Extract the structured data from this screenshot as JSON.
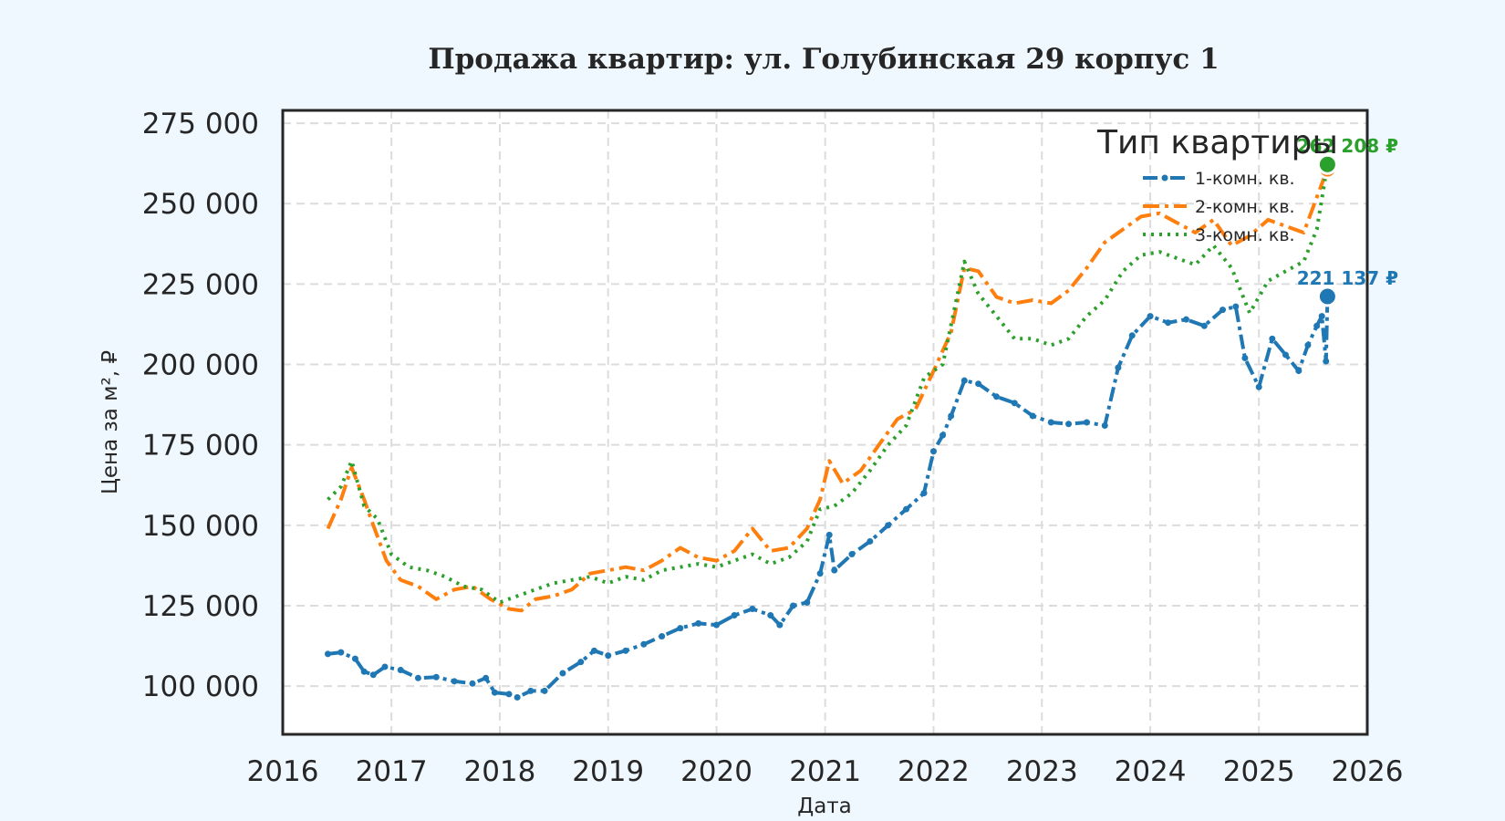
{
  "chart_data": {
    "type": "line",
    "title": "Продажа квартир: ул. Голубинская 29 корпус 1",
    "xlabel": "Дата",
    "ylabel": "Цена за м², ₽",
    "xlim": [
      "2016-01-01",
      "2026-01-01"
    ],
    "ylim": [
      85000,
      279000
    ],
    "x_ticks": [
      {
        "date": "2016-01-01",
        "label": "2016"
      },
      {
        "date": "2017-01-01",
        "label": "2017"
      },
      {
        "date": "2018-01-01",
        "label": "2018"
      },
      {
        "date": "2019-01-01",
        "label": "2019"
      },
      {
        "date": "2020-01-01",
        "label": "2020"
      },
      {
        "date": "2021-01-01",
        "label": "2021"
      },
      {
        "date": "2022-01-01",
        "label": "2022"
      },
      {
        "date": "2023-01-01",
        "label": "2023"
      },
      {
        "date": "2024-01-01",
        "label": "2024"
      },
      {
        "date": "2025-01-01",
        "label": "2025"
      },
      {
        "date": "2026-01-01",
        "label": "2026"
      }
    ],
    "y_ticks": [
      {
        "value": 100000,
        "label": "100 000"
      },
      {
        "value": 125000,
        "label": "125 000"
      },
      {
        "value": 150000,
        "label": "150 000"
      },
      {
        "value": 175000,
        "label": "175 000"
      },
      {
        "value": 200000,
        "label": "200 000"
      },
      {
        "value": 225000,
        "label": "225 000"
      },
      {
        "value": 250000,
        "label": "250 000"
      },
      {
        "value": 275000,
        "label": "275 000"
      }
    ],
    "grid": true,
    "legend": {
      "title": "Тип квартиры",
      "placement": "top-right"
    },
    "series": [
      {
        "name": "1-комн. кв.",
        "color": "#1f77b4",
        "line_style": "dash-dot-markers",
        "points": [
          [
            "2016-06-01",
            110000
          ],
          [
            "2016-07-15",
            110500
          ],
          [
            "2016-09-01",
            108500
          ],
          [
            "2016-10-01",
            104500
          ],
          [
            "2016-11-01",
            103500
          ],
          [
            "2016-12-10",
            106000
          ],
          [
            "2017-02-01",
            105000
          ],
          [
            "2017-04-01",
            102500
          ],
          [
            "2017-06-01",
            102800
          ],
          [
            "2017-08-01",
            101500
          ],
          [
            "2017-10-01",
            100800
          ],
          [
            "2017-11-15",
            102500
          ],
          [
            "2017-12-15",
            98000
          ],
          [
            "2018-02-01",
            97500
          ],
          [
            "2018-03-01",
            96500
          ],
          [
            "2018-04-15",
            98500
          ],
          [
            "2018-06-01",
            98500
          ],
          [
            "2018-08-01",
            104000
          ],
          [
            "2018-10-01",
            107500
          ],
          [
            "2018-11-15",
            111000
          ],
          [
            "2019-01-01",
            109500
          ],
          [
            "2019-03-01",
            111000
          ],
          [
            "2019-05-01",
            113000
          ],
          [
            "2019-07-01",
            115500
          ],
          [
            "2019-09-01",
            118000
          ],
          [
            "2019-11-01",
            119500
          ],
          [
            "2020-01-01",
            119000
          ],
          [
            "2020-03-01",
            122000
          ],
          [
            "2020-05-01",
            124000
          ],
          [
            "2020-07-01",
            122000
          ],
          [
            "2020-08-01",
            119000
          ],
          [
            "2020-09-15",
            125000
          ],
          [
            "2020-11-01",
            126000
          ],
          [
            "2020-12-15",
            135000
          ],
          [
            "2021-01-15",
            147000
          ],
          [
            "2021-02-01",
            136000
          ],
          [
            "2021-04-01",
            141000
          ],
          [
            "2021-06-01",
            145000
          ],
          [
            "2021-08-01",
            150000
          ],
          [
            "2021-10-01",
            155000
          ],
          [
            "2021-11-30",
            160000
          ],
          [
            "2022-01-01",
            173000
          ],
          [
            "2022-02-01",
            178000
          ],
          [
            "2022-03-01",
            184000
          ],
          [
            "2022-04-15",
            195000
          ],
          [
            "2022-06-01",
            194000
          ],
          [
            "2022-08-01",
            190000
          ],
          [
            "2022-10-01",
            188000
          ],
          [
            "2022-12-01",
            184000
          ],
          [
            "2023-02-01",
            182000
          ],
          [
            "2023-04-01",
            181500
          ],
          [
            "2023-06-01",
            182000
          ],
          [
            "2023-08-01",
            181000
          ],
          [
            "2023-09-15",
            199000
          ],
          [
            "2023-11-01",
            209000
          ],
          [
            "2024-01-01",
            215000
          ],
          [
            "2024-03-01",
            213000
          ],
          [
            "2024-05-01",
            214000
          ],
          [
            "2024-07-01",
            212000
          ],
          [
            "2024-09-01",
            217000
          ],
          [
            "2024-10-15",
            218000
          ],
          [
            "2024-11-15",
            202000
          ],
          [
            "2025-01-01",
            193000
          ],
          [
            "2025-02-15",
            208000
          ],
          [
            "2025-04-01",
            203000
          ],
          [
            "2025-05-15",
            198000
          ],
          [
            "2025-06-15",
            206000
          ],
          [
            "2025-07-15",
            212000
          ],
          [
            "2025-08-01",
            215000
          ],
          [
            "2025-08-15",
            201000
          ],
          [
            "2025-08-20",
            221137
          ]
        ],
        "last_value": 221137,
        "last_label": "221 137 ₽"
      },
      {
        "name": "2-комн. кв.",
        "color": "#ff7f0e",
        "line_style": "dash-dot",
        "points": [
          [
            "2016-06-01",
            149000
          ],
          [
            "2016-07-15",
            158000
          ],
          [
            "2016-08-20",
            168000
          ],
          [
            "2016-10-01",
            158000
          ],
          [
            "2016-11-01",
            150000
          ],
          [
            "2016-12-15",
            139000
          ],
          [
            "2017-02-01",
            133000
          ],
          [
            "2017-04-01",
            131000
          ],
          [
            "2017-06-01",
            127000
          ],
          [
            "2017-08-01",
            130000
          ],
          [
            "2017-10-01",
            131000
          ],
          [
            "2017-12-01",
            127000
          ],
          [
            "2018-02-01",
            124000
          ],
          [
            "2018-03-15",
            123500
          ],
          [
            "2018-05-01",
            127000
          ],
          [
            "2018-07-01",
            128000
          ],
          [
            "2018-09-01",
            130000
          ],
          [
            "2018-11-01",
            135000
          ],
          [
            "2019-01-01",
            136000
          ],
          [
            "2019-03-01",
            137000
          ],
          [
            "2019-05-01",
            136000
          ],
          [
            "2019-07-01",
            139000
          ],
          [
            "2019-09-01",
            143000
          ],
          [
            "2019-11-01",
            140000
          ],
          [
            "2020-01-01",
            139000
          ],
          [
            "2020-03-01",
            142000
          ],
          [
            "2020-05-01",
            149000
          ],
          [
            "2020-07-01",
            142000
          ],
          [
            "2020-09-01",
            143000
          ],
          [
            "2020-11-01",
            149000
          ],
          [
            "2020-12-15",
            158000
          ],
          [
            "2021-01-15",
            170000
          ],
          [
            "2021-03-01",
            163000
          ],
          [
            "2021-05-01",
            167000
          ],
          [
            "2021-07-01",
            175000
          ],
          [
            "2021-09-01",
            183000
          ],
          [
            "2021-11-01",
            186000
          ],
          [
            "2022-01-01",
            198000
          ],
          [
            "2022-03-01",
            210000
          ],
          [
            "2022-04-15",
            230000
          ],
          [
            "2022-06-01",
            229000
          ],
          [
            "2022-08-01",
            221000
          ],
          [
            "2022-10-01",
            219000
          ],
          [
            "2022-12-01",
            220000
          ],
          [
            "2023-02-01",
            219000
          ],
          [
            "2023-04-01",
            223000
          ],
          [
            "2023-06-01",
            230000
          ],
          [
            "2023-08-01",
            238000
          ],
          [
            "2023-10-01",
            242000
          ],
          [
            "2023-12-01",
            246000
          ],
          [
            "2024-02-01",
            247000
          ],
          [
            "2024-04-01",
            244000
          ],
          [
            "2024-06-01",
            241000
          ],
          [
            "2024-08-01",
            245000
          ],
          [
            "2024-10-01",
            237000
          ],
          [
            "2024-12-01",
            240000
          ],
          [
            "2025-02-01",
            245000
          ],
          [
            "2025-04-01",
            243000
          ],
          [
            "2025-06-01",
            241000
          ],
          [
            "2025-07-15",
            252000
          ],
          [
            "2025-08-20",
            260861
          ]
        ],
        "last_value": 260861
      },
      {
        "name": "3-комн. кв.",
        "color": "#2ca02c",
        "line_style": "dotted",
        "points": [
          [
            "2016-06-01",
            158000
          ],
          [
            "2016-07-15",
            162000
          ],
          [
            "2016-08-20",
            170000
          ],
          [
            "2016-10-01",
            156000
          ],
          [
            "2016-11-15",
            152000
          ],
          [
            "2017-01-01",
            141000
          ],
          [
            "2017-03-01",
            137000
          ],
          [
            "2017-05-01",
            136000
          ],
          [
            "2017-07-01",
            134000
          ],
          [
            "2017-09-01",
            131000
          ],
          [
            "2017-11-01",
            130000
          ],
          [
            "2018-01-01",
            126000
          ],
          [
            "2018-03-01",
            128000
          ],
          [
            "2018-05-01",
            130000
          ],
          [
            "2018-07-01",
            132000
          ],
          [
            "2018-09-01",
            133000
          ],
          [
            "2018-11-01",
            134000
          ],
          [
            "2019-01-01",
            132000
          ],
          [
            "2019-03-01",
            134000
          ],
          [
            "2019-05-01",
            133000
          ],
          [
            "2019-07-01",
            136000
          ],
          [
            "2019-09-01",
            137000
          ],
          [
            "2019-11-01",
            138000
          ],
          [
            "2020-01-01",
            137000
          ],
          [
            "2020-03-01",
            139000
          ],
          [
            "2020-05-01",
            141000
          ],
          [
            "2020-07-01",
            138000
          ],
          [
            "2020-09-01",
            140000
          ],
          [
            "2020-11-01",
            145000
          ],
          [
            "2020-12-15",
            155000
          ],
          [
            "2021-02-01",
            156000
          ],
          [
            "2021-04-01",
            160000
          ],
          [
            "2021-06-01",
            167000
          ],
          [
            "2021-08-01",
            175000
          ],
          [
            "2021-10-01",
            181000
          ],
          [
            "2021-12-01",
            196000
          ],
          [
            "2022-02-01",
            200000
          ],
          [
            "2022-04-15",
            232000
          ],
          [
            "2022-06-01",
            222000
          ],
          [
            "2022-08-01",
            215000
          ],
          [
            "2022-10-01",
            208000
          ],
          [
            "2022-12-01",
            208000
          ],
          [
            "2023-02-01",
            206000
          ],
          [
            "2023-04-01",
            208000
          ],
          [
            "2023-06-01",
            215000
          ],
          [
            "2023-08-01",
            220000
          ],
          [
            "2023-10-01",
            229000
          ],
          [
            "2023-12-01",
            234000
          ],
          [
            "2024-02-01",
            235000
          ],
          [
            "2024-04-01",
            233000
          ],
          [
            "2024-06-01",
            231000
          ],
          [
            "2024-08-01",
            237000
          ],
          [
            "2024-10-01",
            230000
          ],
          [
            "2024-12-01",
            216000
          ],
          [
            "2025-02-01",
            226000
          ],
          [
            "2025-04-01",
            229000
          ],
          [
            "2025-06-01",
            232000
          ],
          [
            "2025-07-15",
            242000
          ],
          [
            "2025-08-20",
            262208
          ]
        ],
        "last_value": 262208,
        "last_label": "262 208 ₽"
      }
    ]
  }
}
